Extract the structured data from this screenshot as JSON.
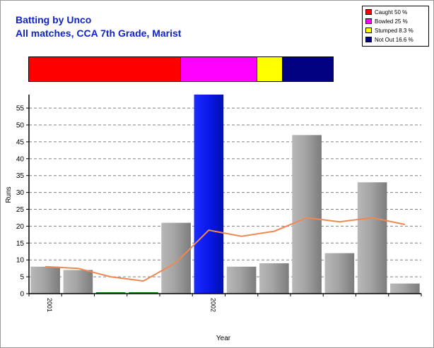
{
  "title": "Batting by Unco",
  "subtitle": "All matches, CCA 7th Grade, Marist",
  "legend": [
    {
      "label": "Caught 50 %",
      "color": "#ff0000"
    },
    {
      "label": "Bowled 25 %",
      "color": "#ff00ff"
    },
    {
      "label": "Stumped 8.3 %",
      "color": "#ffff00"
    },
    {
      "label": "Not Out 16.6 %",
      "color": "#000080"
    }
  ],
  "dismissal_split": [
    {
      "name": "Caught",
      "percent": 50,
      "color": "#ff0000"
    },
    {
      "name": "Bowled",
      "percent": 25,
      "color": "#ff00ff"
    },
    {
      "name": "Stumped",
      "percent": 8.3,
      "color": "#ffff00"
    },
    {
      "name": "Not Out",
      "percent": 16.6,
      "color": "#000080"
    }
  ],
  "chart_data": {
    "type": "bar",
    "xlabel": "Year",
    "ylabel": "Runs",
    "ylim": [
      0,
      59
    ],
    "yticks": [
      0,
      5,
      10,
      15,
      20,
      25,
      30,
      35,
      40,
      45,
      50,
      55
    ],
    "grid": true,
    "x_tick_labels": [
      {
        "index": 0,
        "label": "2001"
      },
      {
        "index": 5,
        "label": "2002"
      }
    ],
    "values": [
      8,
      7,
      0,
      0,
      21,
      59,
      8,
      9,
      47,
      12,
      33,
      3
    ],
    "highlight": [
      false,
      false,
      false,
      false,
      false,
      true,
      false,
      false,
      false,
      false,
      false,
      false
    ],
    "bar_color": "#a0a0a0",
    "highlight_color": "#0000ff",
    "zero_bar_color": "#008000",
    "series": [
      {
        "type": "line",
        "color": "#ee8855",
        "values": [
          8,
          7.5,
          5,
          3.75,
          9.2,
          18.8,
          17,
          18.5,
          22.5,
          21.3,
          22.5,
          20.5
        ]
      }
    ]
  }
}
